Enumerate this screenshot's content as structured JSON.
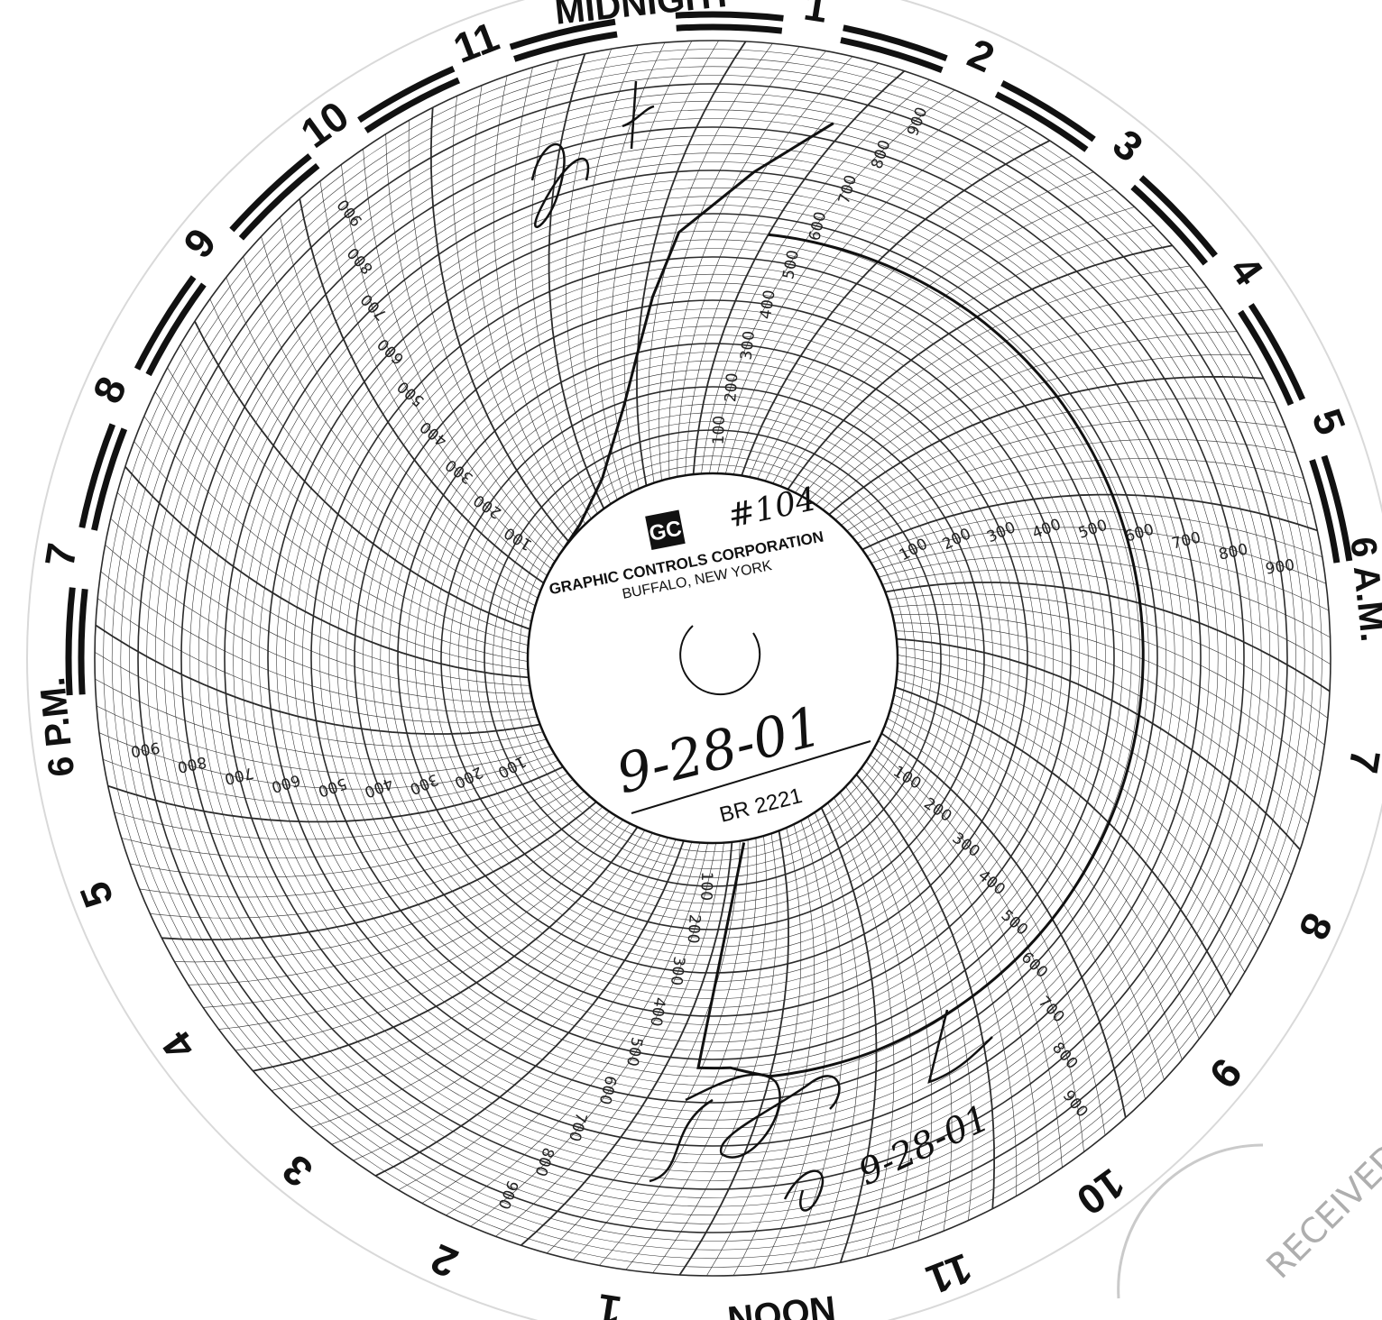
{
  "chart_data": {
    "type": "circular-chart",
    "time_labels": [
      {
        "label": "MIDNIGHT",
        "hour": 0
      },
      {
        "label": "1",
        "hour": 1
      },
      {
        "label": "2",
        "hour": 2
      },
      {
        "label": "3",
        "hour": 3
      },
      {
        "label": "4",
        "hour": 4
      },
      {
        "label": "5",
        "hour": 5
      },
      {
        "label": "6 A.M.",
        "hour": 6
      },
      {
        "label": "7",
        "hour": 7
      },
      {
        "label": "8",
        "hour": 8
      },
      {
        "label": "9",
        "hour": 9
      },
      {
        "label": "10",
        "hour": 10
      },
      {
        "label": "11",
        "hour": 11
      },
      {
        "label": "NOON",
        "hour": 12
      },
      {
        "label": "1",
        "hour": 13
      },
      {
        "label": "2",
        "hour": 14
      },
      {
        "label": "3",
        "hour": 15
      },
      {
        "label": "4",
        "hour": 16
      },
      {
        "label": "5",
        "hour": 17
      },
      {
        "label": "6 P.M.",
        "hour": 18
      },
      {
        "label": "7",
        "hour": 19
      },
      {
        "label": "8",
        "hour": 20
      },
      {
        "label": "9",
        "hour": 21
      },
      {
        "label": "10",
        "hour": 22
      },
      {
        "label": "11",
        "hour": 23
      }
    ],
    "scale": {
      "min": 0,
      "max": 1000,
      "tick_labels": [
        "100",
        "200",
        "300",
        "400",
        "500",
        "600",
        "700",
        "800",
        "900"
      ],
      "scale_label_hours": [
        0.35,
        4.35,
        8.35,
        12.35,
        16.35,
        20.35
      ]
    },
    "trace": [
      {
        "hour": 0.0,
        "value": 560
      },
      {
        "hour": 1.0,
        "value": 565
      },
      {
        "hour": 2.0,
        "value": 570
      },
      {
        "hour": 3.0,
        "value": 572
      },
      {
        "hour": 4.0,
        "value": 570
      },
      {
        "hour": 5.0,
        "value": 568
      },
      {
        "hour": 6.0,
        "value": 566
      },
      {
        "hour": 7.0,
        "value": 564
      },
      {
        "hour": 8.0,
        "value": 562
      },
      {
        "hour": 9.0,
        "value": 558
      },
      {
        "hour": 10.0,
        "value": 555
      },
      {
        "hour": 11.0,
        "value": 548
      },
      {
        "hour": 11.4,
        "value": 520
      },
      {
        "hour": 11.7,
        "value": 520
      },
      {
        "hour": 11.75,
        "value": 5
      }
    ],
    "spike": [
      {
        "hour": 20.4,
        "value": 0
      },
      {
        "hour": 21.4,
        "value": 8
      },
      {
        "hour": 22.2,
        "value": 60
      },
      {
        "hour": 22.8,
        "value": 190
      },
      {
        "hour": 23.0,
        "value": 300
      },
      {
        "hour": 23.1,
        "value": 420
      },
      {
        "hour": 23.2,
        "value": 560
      },
      {
        "hour": 23.6,
        "value": 700
      },
      {
        "hour": 23.9,
        "value": 840
      }
    ]
  },
  "center": {
    "logo": "GC",
    "company": "GRAPHIC CONTROLS CORPORATION",
    "location": "BUFFALO, NEW YORK",
    "chart_number": "BR 2221"
  },
  "handwritten": {
    "id_note": "#104",
    "date": "9-28-01",
    "date_repeat": "9-28-01"
  },
  "stamp": {
    "text": "RECEIVED"
  },
  "colors": {
    "paper": "#ffffff",
    "ink": "#111111",
    "grid": "#2b2b2b",
    "stamp": "#9a9a9a"
  }
}
